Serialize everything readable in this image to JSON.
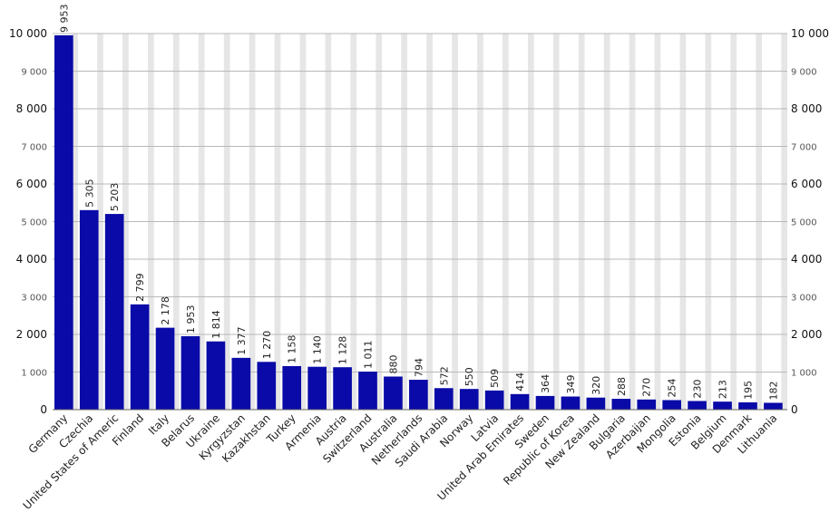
{
  "chart_data": {
    "type": "bar",
    "categories": [
      "Germany",
      "Czechia",
      "United States of Americ",
      "Finland",
      "Italy",
      "Belarus",
      "Ukraine",
      "Kyrgyzstan",
      "Kazakhstan",
      "Turkey",
      "Armenia",
      "Austria",
      "Switzerland",
      "Australia",
      "Netherlands",
      "Saudi Arabia",
      "Norway",
      "Latvia",
      "United Arab Emirates",
      "Sweden",
      "Republic of Korea",
      "New Zealand",
      "Bulgaria",
      "Azerbaijan",
      "Mongolia",
      "Estonia",
      "Belgium",
      "Denmark",
      "Lithuania"
    ],
    "values": [
      9953,
      5305,
      5203,
      2799,
      2178,
      1953,
      1814,
      1377,
      1270,
      1158,
      1140,
      1128,
      1011,
      880,
      794,
      572,
      550,
      509,
      414,
      364,
      349,
      320,
      288,
      270,
      254,
      230,
      213,
      195,
      182
    ],
    "value_labels": [
      "9 953",
      "5 305",
      "5 203",
      "2 799",
      "2 178",
      "1 953",
      "1 814",
      "1 377",
      "1 270",
      "1 158",
      "1 140",
      "1 128",
      "1 011",
      "880",
      "794",
      "572",
      "550",
      "509",
      "414",
      "364",
      "349",
      "320",
      "288",
      "270",
      "254",
      "230",
      "213",
      "195",
      "182"
    ],
    "ylim": [
      0,
      10000
    ],
    "yticks": [
      0,
      1000,
      2000,
      3000,
      4000,
      5000,
      6000,
      7000,
      8000,
      9000,
      10000
    ],
    "ytick_labels": [
      "0",
      "1 000",
      "2 000",
      "3 000",
      "4 000",
      "5 000",
      "6 000",
      "7 000",
      "8 000",
      "9 000",
      "10 000"
    ],
    "title": "",
    "xlabel": "",
    "ylabel": "",
    "grid": true,
    "bar_color": "#0a0aa8",
    "stripe_color": "#e6e6e6",
    "axis_labels_both_sides": true
  }
}
